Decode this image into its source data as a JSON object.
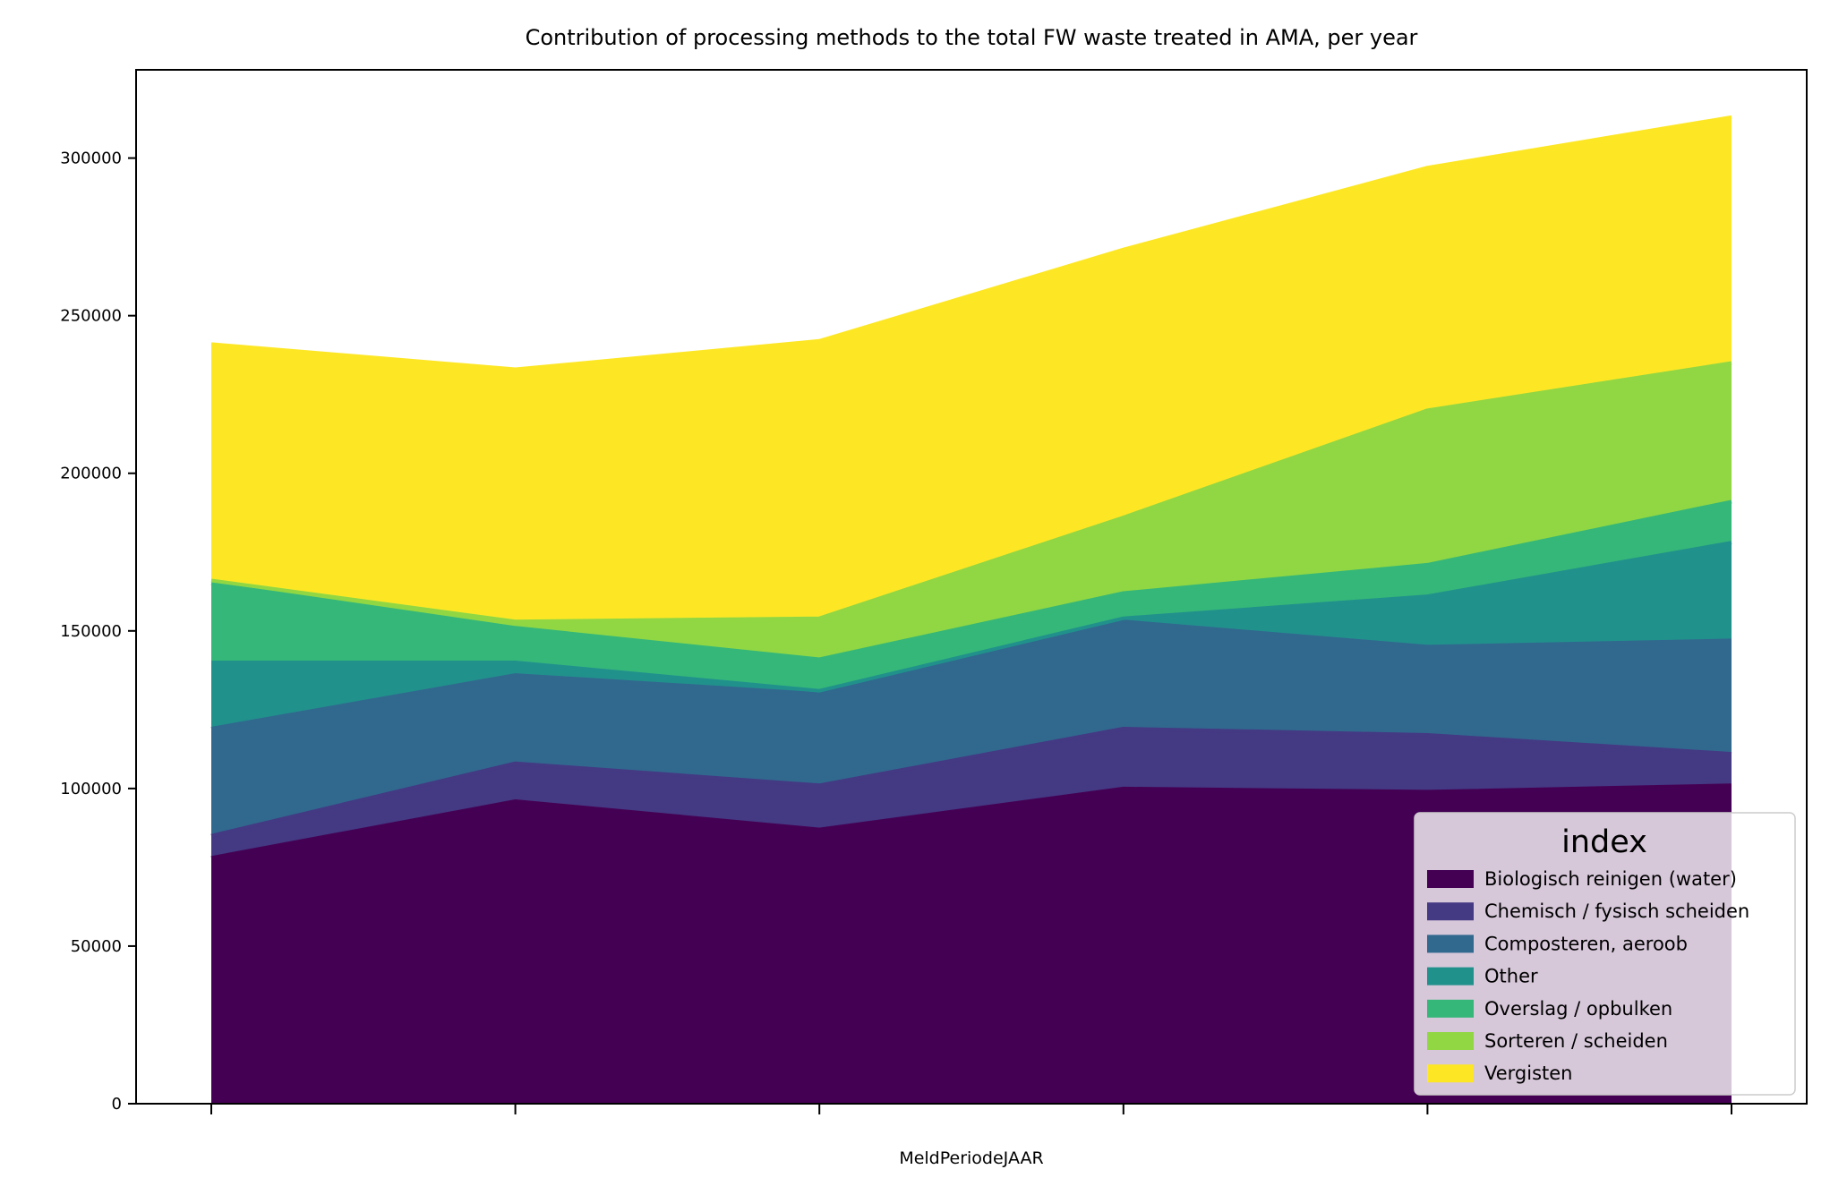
{
  "chart_data": {
    "type": "area",
    "stacked": true,
    "title": "Contribution of processing methods to the total FW waste treated in AMA, per year",
    "xlabel": "MeldPeriodeJAAR",
    "ylabel": "",
    "x": [
      0,
      1,
      2,
      3,
      4,
      5
    ],
    "x_tick_labels": [
      "",
      "",
      "",
      "",
      "",
      ""
    ],
    "ylim": [
      0,
      328000
    ],
    "y_ticks": [
      0,
      50000,
      100000,
      150000,
      200000,
      250000,
      300000
    ],
    "grid": false,
    "legend": {
      "title": "index",
      "position": "lower-right"
    },
    "series": [
      {
        "name": "Biologisch reinigen (water)",
        "color": "#440154",
        "values": [
          78000,
          96000,
          87000,
          100000,
          99000,
          101000
        ]
      },
      {
        "name": "Chemisch / fysisch scheiden",
        "color": "#443983",
        "values": [
          7000,
          12000,
          14000,
          19000,
          18000,
          10000
        ]
      },
      {
        "name": "Composteren, aeroob",
        "color": "#31688e",
        "values": [
          34000,
          28000,
          29000,
          34000,
          28000,
          36000
        ]
      },
      {
        "name": "Other",
        "color": "#21918c",
        "values": [
          21000,
          4000,
          1000,
          1000,
          16000,
          31000
        ]
      },
      {
        "name": "Overslag / opbulken",
        "color": "#35b779",
        "values": [
          25000,
          11000,
          10000,
          8000,
          10000,
          13000
        ]
      },
      {
        "name": "Sorteren / scheiden",
        "color": "#90d743",
        "values": [
          1000,
          2000,
          13000,
          24000,
          49000,
          44000
        ]
      },
      {
        "name": "Vergisten",
        "color": "#fde725",
        "values": [
          75000,
          80000,
          88000,
          85000,
          77000,
          78000
        ]
      }
    ]
  }
}
